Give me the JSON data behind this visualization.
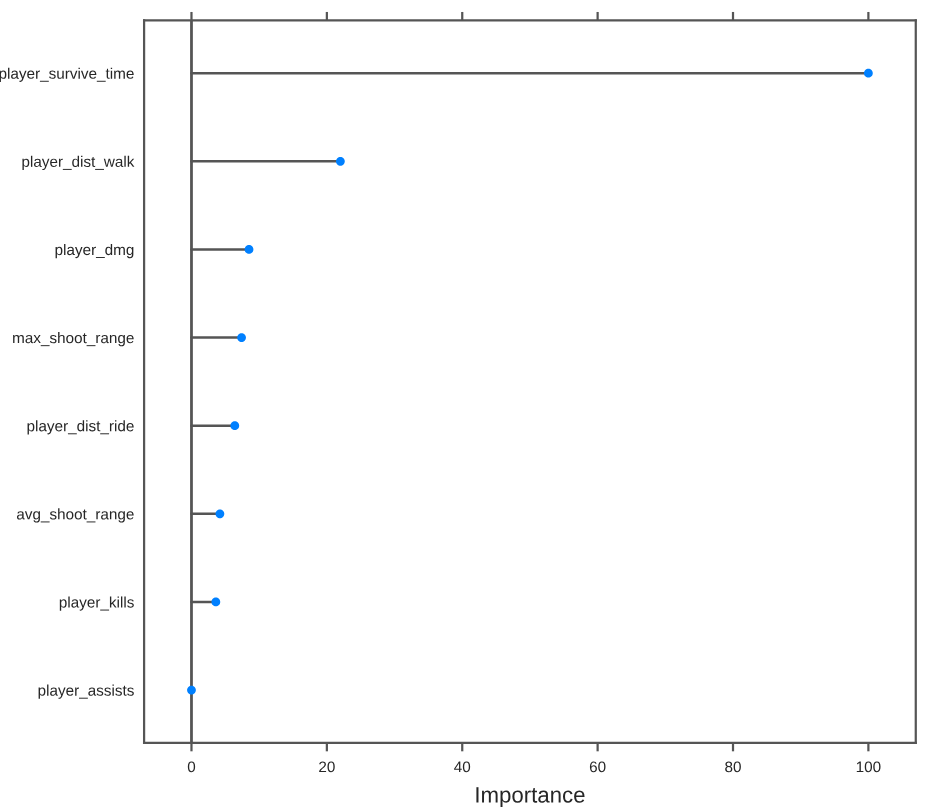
{
  "chart_data": {
    "type": "lollipop",
    "xlabel": "Importance",
    "orientation": "horizontal",
    "categories": [
      "player_survive_time",
      "player_dist_walk",
      "player_dmg",
      "max_shoot_range",
      "player_dist_ride",
      "avg_shoot_range",
      "player_kills",
      "player_assists"
    ],
    "series": [
      {
        "color": "#0080ff",
        "values": [
          100,
          22,
          8.5,
          7.4,
          6.4,
          4.2,
          3.6,
          0
        ]
      }
    ],
    "xlim": [
      -7,
      107
    ],
    "xticks": [
      0,
      20,
      40,
      60,
      80,
      100
    ],
    "ref_lines": [
      {
        "axis": "x",
        "value": 0,
        "color": "#555555"
      }
    ],
    "marker": "circle",
    "grid": false,
    "legend": false
  }
}
